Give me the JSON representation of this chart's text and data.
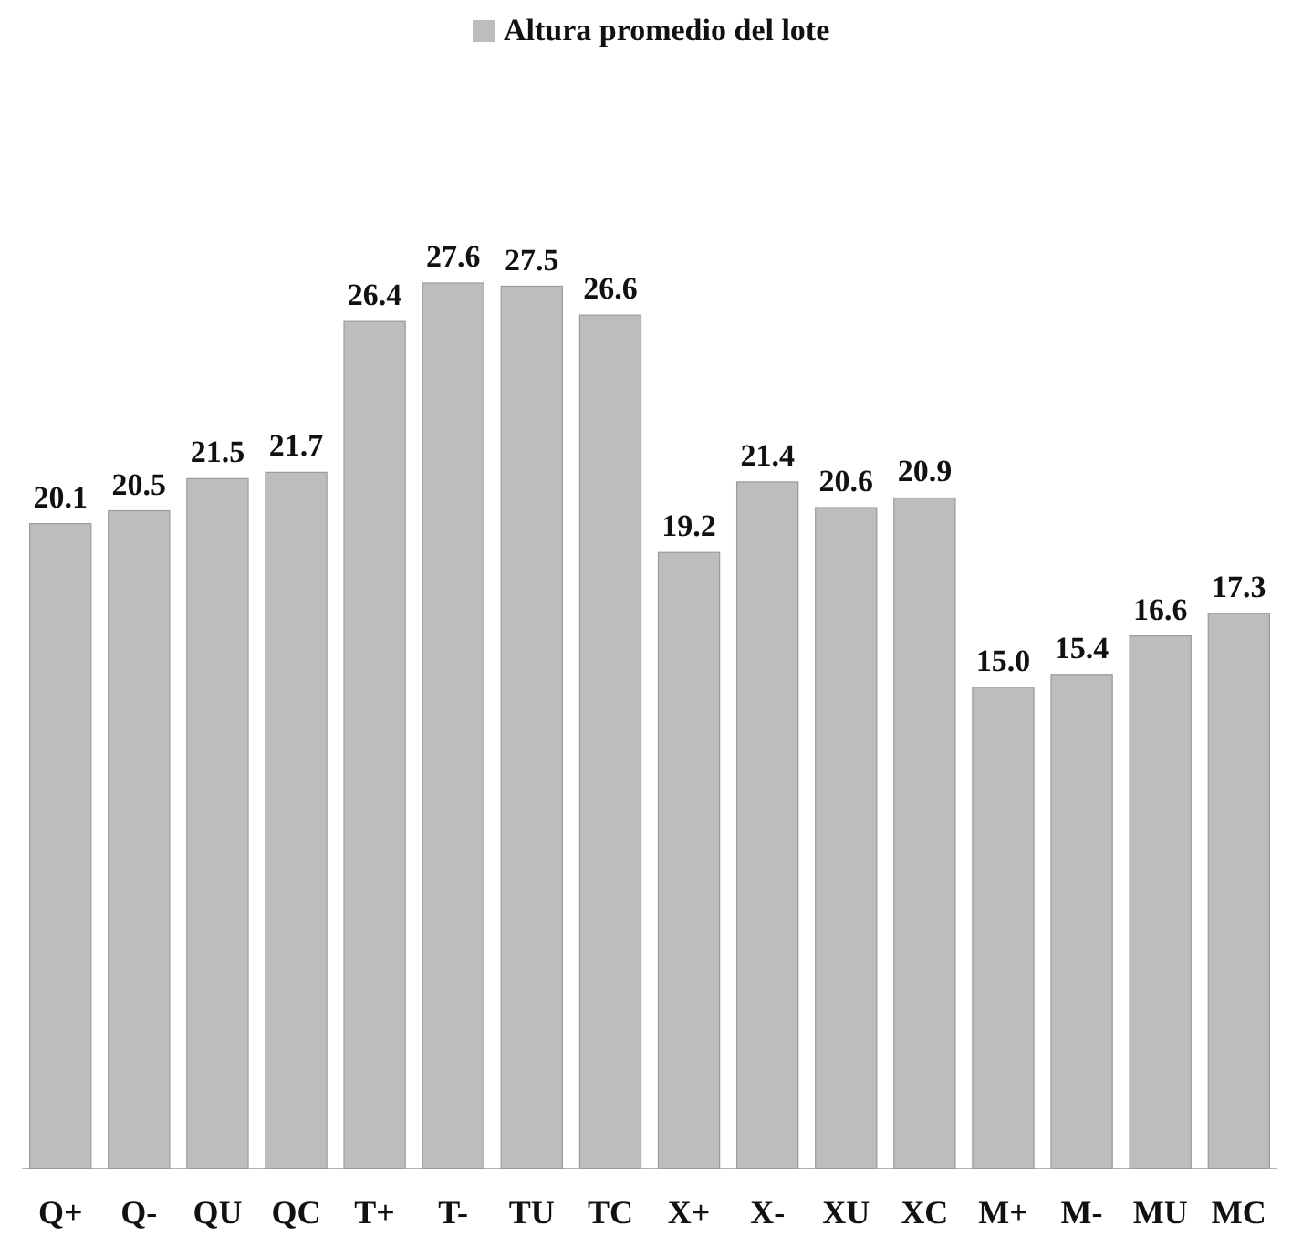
{
  "chart_data": {
    "type": "bar",
    "categories": [
      "Q+",
      "Q-",
      "QU",
      "QC",
      "T+",
      "T-",
      "TU",
      "TC",
      "X+",
      "X-",
      "XU",
      "XC",
      "M+",
      "M-",
      "MU",
      "MC"
    ],
    "series": [
      {
        "name": "Altura promedio del lote",
        "color": "#bdbdbd",
        "values": [
          20.1,
          20.5,
          21.5,
          21.7,
          26.4,
          27.6,
          27.5,
          26.6,
          19.2,
          21.4,
          20.6,
          20.9,
          15.0,
          15.4,
          16.6,
          17.3
        ],
        "value_labels": [
          "20.1",
          "20.5",
          "21.5",
          "21.7",
          "26.4",
          "27.6",
          "27.5",
          "26.6",
          "19.2",
          "21.4",
          "20.6",
          "20.9",
          "15.0",
          "15.4",
          "16.6",
          "17.3"
        ]
      }
    ],
    "legend": "top",
    "grid": false
  }
}
